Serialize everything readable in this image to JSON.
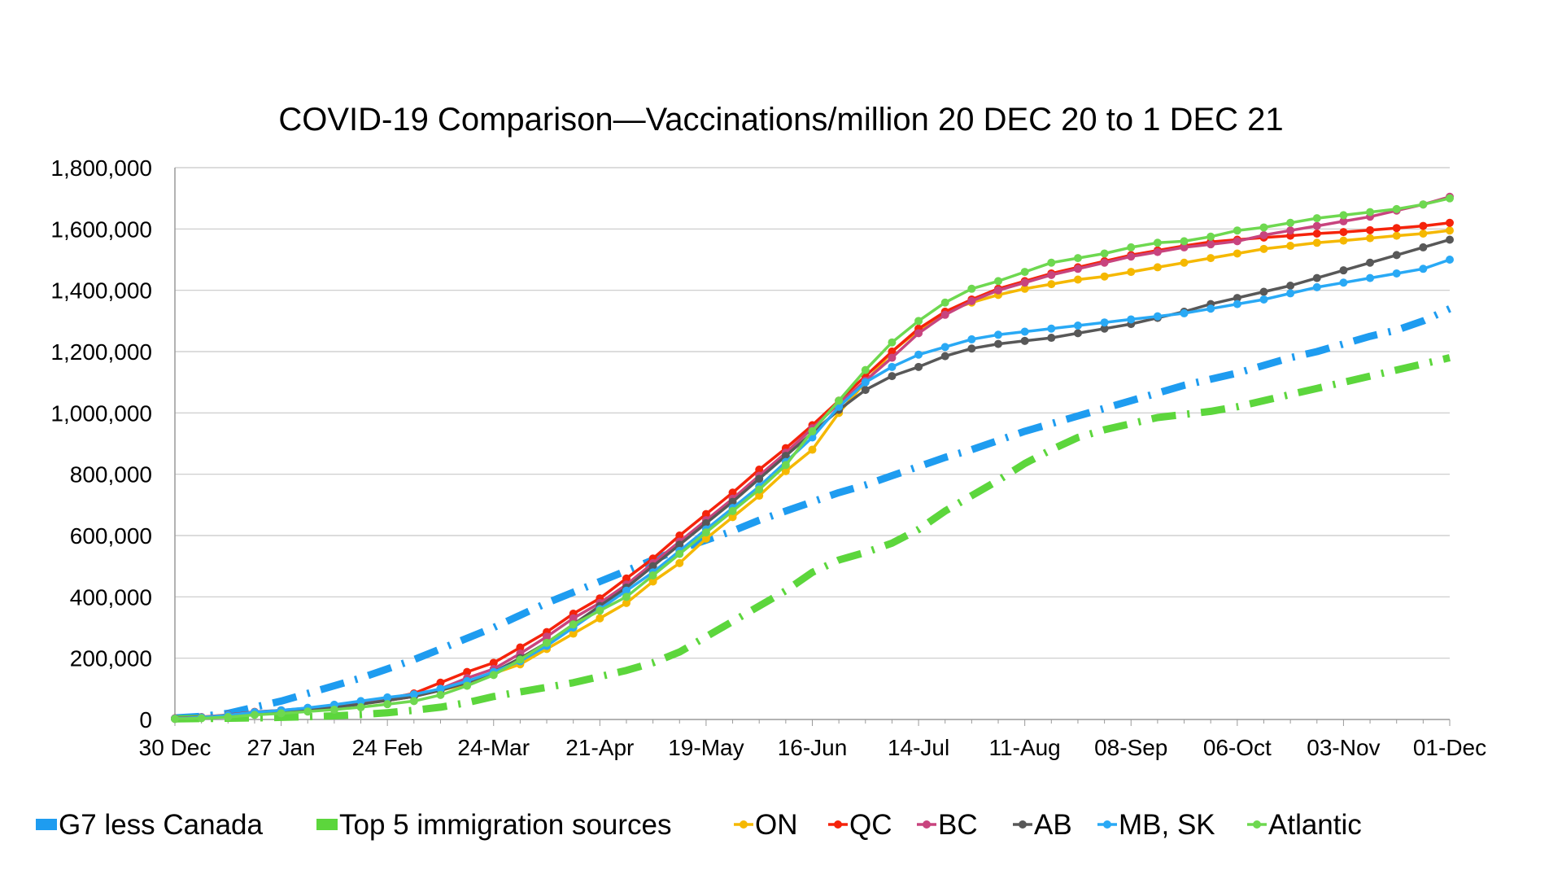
{
  "chart_data": {
    "type": "line",
    "title": "COVID-19 Comparison—Vaccinations/million 20 DEC 20 to 1 DEC 21",
    "xlabel": "",
    "ylabel": "",
    "ylim": [
      0,
      1800000
    ],
    "y_ticks": [
      "0",
      "200,000",
      "400,000",
      "600,000",
      "800,000",
      "1,000,000",
      "1,200,000",
      "1,400,000",
      "1,600,000",
      "1,800,000"
    ],
    "x_ticks": [
      "30 Dec",
      "27 Jan",
      "24 Feb",
      "24-Mar",
      "21-Apr",
      "19-May",
      "16-Jun",
      "14-Jul",
      "11-Aug",
      "08-Sep",
      "06-Oct",
      "03-Nov",
      "01-Dec"
    ],
    "x_unit_note": "x values are weeks after 30 Dec 2020",
    "grid": "horizontal",
    "legend_position": "bottom",
    "series": [
      {
        "name": "G7 less Canada",
        "color": "#1E9CF0",
        "style": "dashdot",
        "marker": false,
        "x": [
          0,
          1,
          2,
          3,
          4,
          5,
          6,
          7,
          8,
          9,
          10,
          11,
          12,
          13,
          14,
          15,
          16,
          17,
          18,
          19,
          20,
          21,
          22,
          23,
          24,
          25,
          26,
          27,
          28,
          29,
          30,
          31,
          32,
          33,
          34,
          35,
          36,
          37,
          38,
          39,
          40,
          41,
          42,
          43,
          44,
          45,
          46,
          47,
          48
        ],
        "values": [
          5000,
          10000,
          20000,
          40000,
          60000,
          85000,
          110000,
          135000,
          165000,
          195000,
          230000,
          265000,
          300000,
          340000,
          380000,
          415000,
          450000,
          485000,
          520000,
          555000,
          585000,
          615000,
          650000,
          680000,
          710000,
          740000,
          765000,
          795000,
          825000,
          855000,
          880000,
          910000,
          940000,
          965000,
          990000,
          1015000,
          1040000,
          1065000,
          1090000,
          1110000,
          1130000,
          1155000,
          1180000,
          1200000,
          1225000,
          1250000,
          1270000,
          1300000,
          1340000
        ]
      },
      {
        "name": "Top 5 immigration sources",
        "color": "#5CD63C",
        "style": "dashdot",
        "marker": false,
        "x": [
          0,
          1,
          2,
          3,
          4,
          5,
          6,
          7,
          8,
          9,
          10,
          11,
          12,
          13,
          14,
          15,
          16,
          17,
          18,
          19,
          20,
          21,
          22,
          23,
          24,
          25,
          26,
          27,
          28,
          29,
          30,
          31,
          32,
          33,
          34,
          35,
          36,
          37,
          38,
          39,
          40,
          41,
          42,
          43,
          44,
          45,
          46,
          47,
          48
        ],
        "values": [
          2000,
          3000,
          4000,
          5000,
          7000,
          9000,
          12000,
          16000,
          22000,
          30000,
          40000,
          55000,
          75000,
          90000,
          105000,
          120000,
          140000,
          160000,
          185000,
          220000,
          270000,
          320000,
          370000,
          420000,
          480000,
          520000,
          545000,
          575000,
          620000,
          680000,
          730000,
          780000,
          835000,
          880000,
          920000,
          945000,
          965000,
          985000,
          995000,
          1005000,
          1020000,
          1040000,
          1060000,
          1080000,
          1100000,
          1120000,
          1140000,
          1160000,
          1180000
        ]
      },
      {
        "name": "ON",
        "color": "#F5B800",
        "style": "solid",
        "marker": true,
        "x": [
          0,
          1,
          2,
          3,
          4,
          5,
          6,
          7,
          8,
          9,
          10,
          11,
          12,
          13,
          14,
          15,
          16,
          17,
          18,
          19,
          20,
          21,
          22,
          23,
          24,
          25,
          26,
          27,
          28,
          29,
          30,
          31,
          32,
          33,
          34,
          35,
          36,
          37,
          38,
          39,
          40,
          41,
          42,
          43,
          44,
          45,
          46,
          47,
          48
        ],
        "values": [
          3000,
          6000,
          12000,
          22000,
          26000,
          32000,
          40000,
          50000,
          62000,
          75000,
          95000,
          115000,
          150000,
          180000,
          230000,
          280000,
          330000,
          380000,
          450000,
          510000,
          590000,
          660000,
          730000,
          810000,
          880000,
          1000000,
          1100000,
          1200000,
          1270000,
          1330000,
          1360000,
          1385000,
          1405000,
          1420000,
          1435000,
          1445000,
          1460000,
          1475000,
          1490000,
          1505000,
          1520000,
          1535000,
          1545000,
          1555000,
          1562000,
          1570000,
          1578000,
          1585000,
          1595000
        ]
      },
      {
        "name": "QC",
        "color": "#F5230B",
        "style": "solid",
        "marker": true,
        "x": [
          0,
          1,
          2,
          3,
          4,
          5,
          6,
          7,
          8,
          9,
          10,
          11,
          12,
          13,
          14,
          15,
          16,
          17,
          18,
          19,
          20,
          21,
          22,
          23,
          24,
          25,
          26,
          27,
          28,
          29,
          30,
          31,
          32,
          33,
          34,
          35,
          36,
          37,
          38,
          39,
          40,
          41,
          42,
          43,
          44,
          45,
          46,
          47,
          48
        ],
        "values": [
          4000,
          8000,
          15000,
          25000,
          30000,
          37000,
          45000,
          55000,
          68000,
          85000,
          120000,
          155000,
          185000,
          235000,
          285000,
          345000,
          395000,
          460000,
          525000,
          600000,
          670000,
          740000,
          815000,
          885000,
          960000,
          1040000,
          1120000,
          1200000,
          1275000,
          1330000,
          1370000,
          1405000,
          1430000,
          1455000,
          1475000,
          1495000,
          1515000,
          1530000,
          1545000,
          1558000,
          1565000,
          1572000,
          1578000,
          1585000,
          1590000,
          1596000,
          1603000,
          1610000,
          1620000
        ]
      },
      {
        "name": "BC",
        "color": "#C8447E",
        "style": "solid",
        "marker": true,
        "x": [
          0,
          1,
          2,
          3,
          4,
          5,
          6,
          7,
          8,
          9,
          10,
          11,
          12,
          13,
          14,
          15,
          16,
          17,
          18,
          19,
          20,
          21,
          22,
          23,
          24,
          25,
          26,
          27,
          28,
          29,
          30,
          31,
          32,
          33,
          34,
          35,
          36,
          37,
          38,
          39,
          40,
          41,
          42,
          43,
          44,
          45,
          46,
          47,
          48
        ],
        "values": [
          3000,
          7000,
          13000,
          23000,
          28000,
          35000,
          42000,
          52000,
          62000,
          75000,
          100000,
          135000,
          165000,
          215000,
          270000,
          330000,
          380000,
          440000,
          510000,
          580000,
          650000,
          720000,
          795000,
          870000,
          950000,
          1030000,
          1105000,
          1180000,
          1260000,
          1320000,
          1365000,
          1400000,
          1425000,
          1450000,
          1470000,
          1490000,
          1510000,
          1525000,
          1540000,
          1550000,
          1560000,
          1580000,
          1595000,
          1610000,
          1625000,
          1640000,
          1660000,
          1680000,
          1705000
        ]
      },
      {
        "name": "AB",
        "color": "#585858",
        "style": "solid",
        "marker": true,
        "x": [
          0,
          1,
          2,
          3,
          4,
          5,
          6,
          7,
          8,
          9,
          10,
          11,
          12,
          13,
          14,
          15,
          16,
          17,
          18,
          19,
          20,
          21,
          22,
          23,
          24,
          25,
          26,
          27,
          28,
          29,
          30,
          31,
          32,
          33,
          34,
          35,
          36,
          37,
          38,
          39,
          40,
          41,
          42,
          43,
          44,
          45,
          46,
          47,
          48
        ],
        "values": [
          2000,
          5000,
          10000,
          20000,
          26000,
          33000,
          40000,
          50000,
          62000,
          75000,
          95000,
          120000,
          155000,
          200000,
          250000,
          310000,
          370000,
          430000,
          500000,
          570000,
          640000,
          710000,
          785000,
          860000,
          935000,
          1010000,
          1075000,
          1120000,
          1150000,
          1185000,
          1210000,
          1225000,
          1235000,
          1245000,
          1260000,
          1275000,
          1290000,
          1310000,
          1330000,
          1355000,
          1375000,
          1395000,
          1415000,
          1440000,
          1465000,
          1490000,
          1515000,
          1540000,
          1565000
        ]
      },
      {
        "name": "MB, SK",
        "color": "#29A9F5",
        "style": "solid",
        "marker": true,
        "x": [
          0,
          1,
          2,
          3,
          4,
          5,
          6,
          7,
          8,
          9,
          10,
          11,
          12,
          13,
          14,
          15,
          16,
          17,
          18,
          19,
          20,
          21,
          22,
          23,
          24,
          25,
          26,
          27,
          28,
          29,
          30,
          31,
          32,
          33,
          34,
          35,
          36,
          37,
          38,
          39,
          40,
          41,
          42,
          43,
          44,
          45,
          46,
          47,
          48
        ],
        "values": [
          3000,
          7000,
          14000,
          24000,
          30000,
          38000,
          48000,
          60000,
          72000,
          82000,
          100000,
          125000,
          155000,
          190000,
          240000,
          300000,
          360000,
          420000,
          480000,
          550000,
          620000,
          690000,
          760000,
          840000,
          920000,
          1020000,
          1100000,
          1150000,
          1190000,
          1215000,
          1240000,
          1255000,
          1265000,
          1275000,
          1285000,
          1295000,
          1305000,
          1315000,
          1325000,
          1340000,
          1355000,
          1370000,
          1390000,
          1410000,
          1425000,
          1440000,
          1455000,
          1470000,
          1500000
        ]
      },
      {
        "name": "Atlantic",
        "color": "#6ED850",
        "style": "solid",
        "marker": true,
        "x": [
          0,
          1,
          2,
          3,
          4,
          5,
          6,
          7,
          8,
          9,
          10,
          11,
          12,
          13,
          14,
          15,
          16,
          17,
          18,
          19,
          20,
          21,
          22,
          23,
          24,
          25,
          26,
          27,
          28,
          29,
          30,
          31,
          32,
          33,
          34,
          35,
          36,
          37,
          38,
          39,
          40,
          41,
          42,
          43,
          44,
          45,
          46,
          47,
          48
        ],
        "values": [
          2000,
          4000,
          8000,
          15000,
          20000,
          26000,
          32000,
          40000,
          50000,
          60000,
          80000,
          110000,
          145000,
          195000,
          250000,
          310000,
          355000,
          400000,
          470000,
          540000,
          610000,
          680000,
          750000,
          830000,
          940000,
          1040000,
          1140000,
          1230000,
          1300000,
          1360000,
          1405000,
          1430000,
          1460000,
          1490000,
          1505000,
          1520000,
          1540000,
          1555000,
          1560000,
          1575000,
          1595000,
          1605000,
          1620000,
          1635000,
          1645000,
          1655000,
          1665000,
          1680000,
          1700000
        ]
      }
    ]
  }
}
